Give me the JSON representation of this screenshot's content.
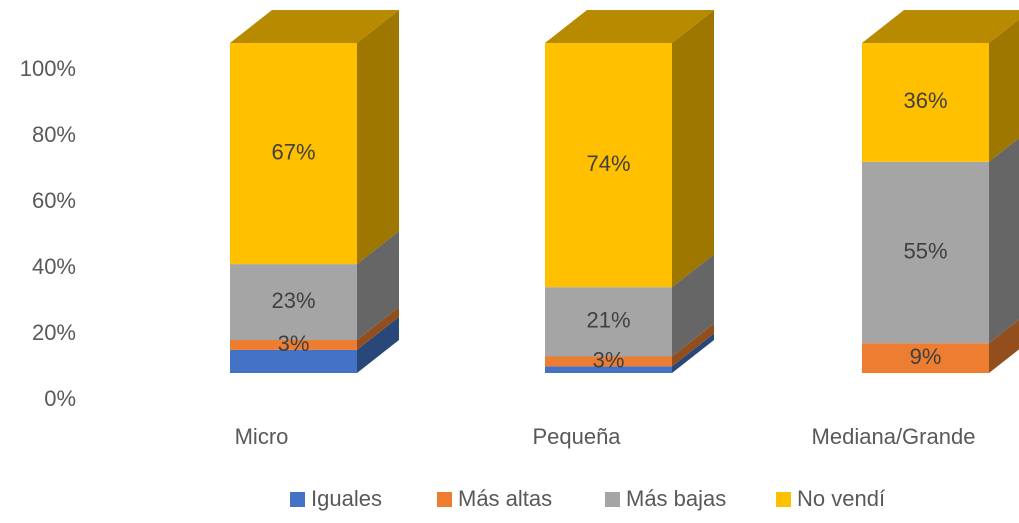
{
  "chart_data": {
    "type": "bar3d_stacked",
    "categories": [
      "Micro",
      "Pequeña",
      "Mediana/Grande"
    ],
    "series": [
      {
        "name": "Iguales",
        "color": "#4472c4",
        "values": [
          7,
          2,
          0
        ],
        "value_labels": [
          null,
          null,
          null
        ]
      },
      {
        "name": "Más altas",
        "color": "#ed7d31",
        "values": [
          3,
          3,
          9
        ],
        "value_labels": [
          "3%",
          "3%",
          "9%"
        ]
      },
      {
        "name": "Más bajas",
        "color": "#a5a5a5",
        "values": [
          23,
          21,
          55
        ],
        "value_labels": [
          "23%",
          "21%",
          "55%"
        ]
      },
      {
        "name": "No vendí",
        "color": "#ffc000",
        "values": [
          67,
          74,
          36
        ],
        "value_labels": [
          "67%",
          "74%",
          "36%"
        ]
      }
    ],
    "ylim": [
      0,
      100
    ],
    "yticks": [
      {
        "value": 0,
        "label": "0%"
      },
      {
        "value": 20,
        "label": "20%"
      },
      {
        "value": 40,
        "label": "40%"
      },
      {
        "value": 60,
        "label": "60%"
      },
      {
        "value": 80,
        "label": "80%"
      },
      {
        "value": 100,
        "label": "100%"
      }
    ],
    "legend": "bottom"
  }
}
